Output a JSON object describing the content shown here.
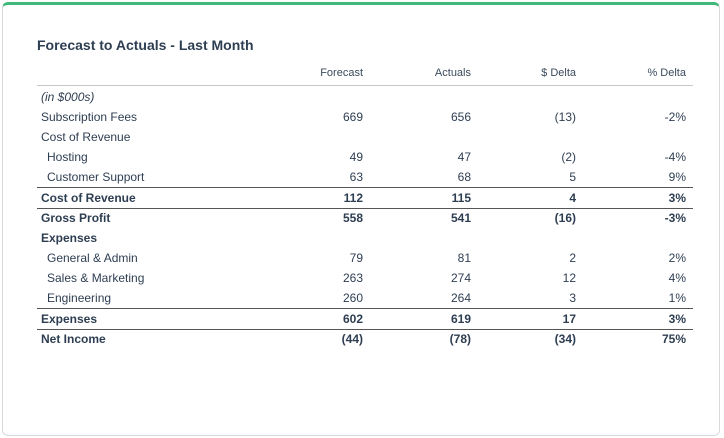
{
  "title": "Forecast to Actuals - Last Month",
  "columns": [
    "Forecast",
    "Actuals",
    "$ Delta",
    "% Delta"
  ],
  "rows": [
    {
      "label": "(in $000s)",
      "values": [
        "",
        "",
        "",
        ""
      ]
    },
    {
      "label": "Subscription Fees",
      "values": [
        "669",
        "656",
        "(13)",
        "-2%"
      ]
    },
    {
      "label": "Cost of Revenue",
      "values": [
        "",
        "",
        "",
        ""
      ]
    },
    {
      "label": "Hosting",
      "values": [
        "49",
        "47",
        "(2)",
        "-4%"
      ]
    },
    {
      "label": "Customer Support",
      "values": [
        "63",
        "68",
        "5",
        "9%"
      ]
    },
    {
      "label": "Cost of Revenue",
      "values": [
        "112",
        "115",
        "4",
        "3%"
      ]
    },
    {
      "label": "Gross Profit",
      "values": [
        "558",
        "541",
        "(16)",
        "-3%"
      ]
    },
    {
      "label": "Expenses",
      "values": [
        "",
        "",
        "",
        ""
      ]
    },
    {
      "label": "General & Admin",
      "values": [
        "79",
        "81",
        "2",
        "2%"
      ]
    },
    {
      "label": "Sales & Marketing",
      "values": [
        "263",
        "274",
        "12",
        "4%"
      ]
    },
    {
      "label": "Engineering",
      "values": [
        "260",
        "264",
        "3",
        "1%"
      ]
    },
    {
      "label": "Expenses",
      "values": [
        "602",
        "619",
        "17",
        "3%"
      ]
    },
    {
      "label": "Net Income",
      "values": [
        "(44)",
        "(78)",
        "(34)",
        "75%"
      ]
    }
  ]
}
